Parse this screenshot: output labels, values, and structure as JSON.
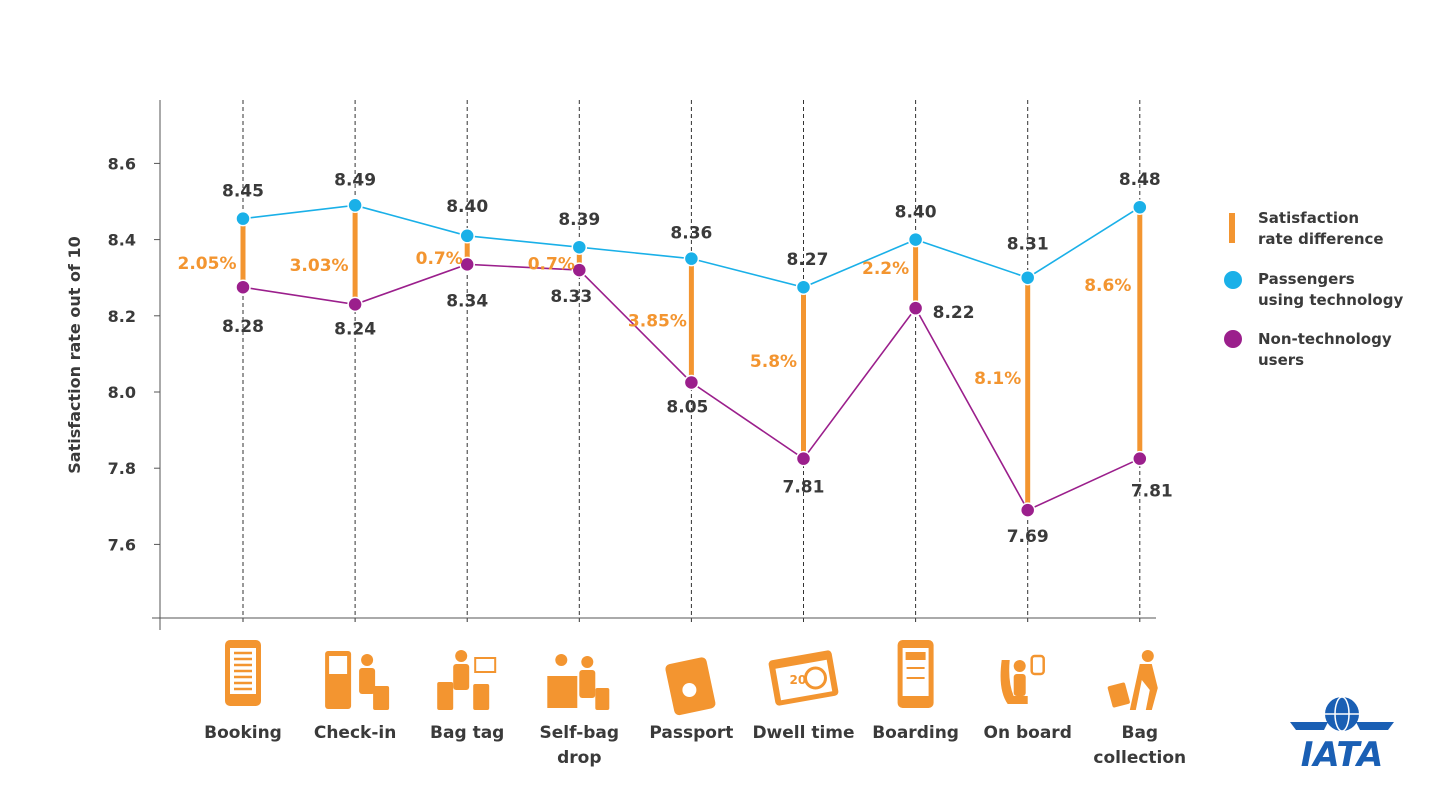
{
  "chart_data": {
    "type": "line",
    "ylabel": "Satisfaction rate out of 10",
    "ylim": [
      7.43,
      8.8
    ],
    "yticks": [
      "8.6",
      "8.4",
      "8.2",
      "8.0",
      "7.8",
      "7.6"
    ],
    "categories": [
      {
        "label": [
          "Booking"
        ],
        "icon": "smartphone-icon"
      },
      {
        "label": [
          "Check-in"
        ],
        "icon": "check-in-kiosk-icon"
      },
      {
        "label": [
          "Bag tag"
        ],
        "icon": "bag-tag-icon"
      },
      {
        "label": [
          "Self-bag",
          "drop"
        ],
        "icon": "self-bag-drop-icon"
      },
      {
        "label": [
          "Passport"
        ],
        "icon": "passport-icon"
      },
      {
        "label": [
          "Dwell time"
        ],
        "icon": "calendar-clock-icon"
      },
      {
        "label": [
          "Boarding"
        ],
        "icon": "boarding-pass-phone-icon"
      },
      {
        "label": [
          "On board"
        ],
        "icon": "airplane-seat-icon"
      },
      {
        "label": [
          "Bag",
          "collection"
        ],
        "icon": "baggage-collection-icon"
      }
    ],
    "series": [
      {
        "name": "Passengers using technology",
        "color": "#1ab0e8",
        "values": [
          8.45,
          8.49,
          8.4,
          8.39,
          8.36,
          8.27,
          8.4,
          8.31,
          8.48
        ],
        "plot_values": [
          8.455,
          8.49,
          8.41,
          8.38,
          8.35,
          8.275,
          8.4,
          8.3,
          8.485
        ]
      },
      {
        "name": "Non-technology users",
        "color": "#9b1f8c",
        "values": [
          8.28,
          8.24,
          8.34,
          8.33,
          8.05,
          7.81,
          8.22,
          7.69,
          7.81
        ],
        "plot_values": [
          8.275,
          8.23,
          8.335,
          8.32,
          8.025,
          7.825,
          8.22,
          7.69,
          7.825
        ]
      }
    ],
    "differences": {
      "name": [
        "Satisfaction",
        "rate difference"
      ],
      "color": "#f39530",
      "labels": [
        "2.05%",
        "3.03%",
        "0.7%",
        "0.7%",
        "3.85%",
        "5.8%",
        "2.2%",
        "8.1%",
        "8.6%"
      ]
    },
    "legend": {
      "position": "right",
      "items": [
        {
          "type": "bar",
          "lines": [
            "Satisfaction",
            "rate difference"
          ],
          "color": "#f39530"
        },
        {
          "type": "dot",
          "lines": [
            "Passengers",
            "using technology"
          ],
          "color": "#1ab0e8"
        },
        {
          "type": "dot",
          "lines": [
            "Non-technology",
            "users"
          ],
          "color": "#9b1f8c"
        }
      ]
    },
    "grid": "vertical dashed",
    "logo": {
      "text": "IATA",
      "color": "#1a5fb4"
    }
  }
}
